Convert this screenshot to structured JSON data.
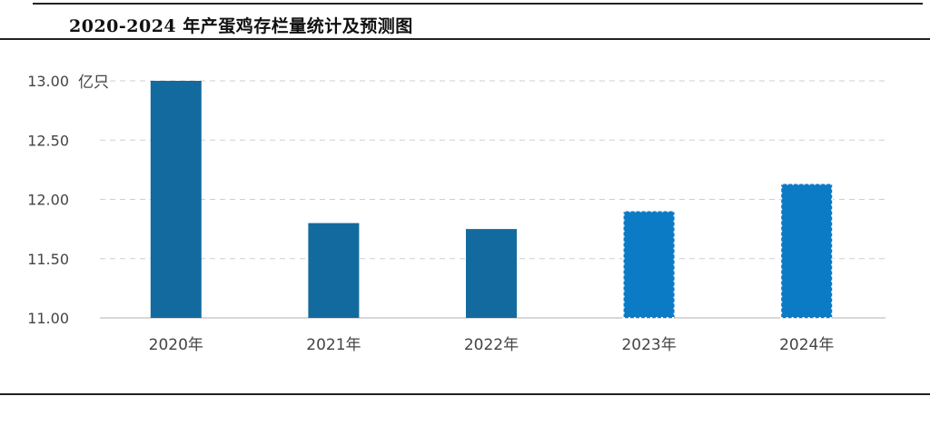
{
  "title": "2020-2024 年产蛋鸡存栏量统计及预测图",
  "chart_data": {
    "type": "bar",
    "categories": [
      "2020年",
      "2021年",
      "2022年",
      "2023年",
      "2024年"
    ],
    "values": [
      13.0,
      11.8,
      11.75,
      11.9,
      12.13
    ],
    "forecast": [
      false,
      false,
      false,
      true,
      true
    ],
    "unit_label": "亿只",
    "yticks": [
      "11.00",
      "11.50",
      "12.00",
      "12.50",
      "13.00"
    ],
    "ylim": [
      11.0,
      13.0
    ],
    "grid": true,
    "colors": {
      "actual": "#136a9e",
      "forecast": "#0b7bc6",
      "grid": "#cfcfcf",
      "axis": "#cccccc"
    }
  }
}
